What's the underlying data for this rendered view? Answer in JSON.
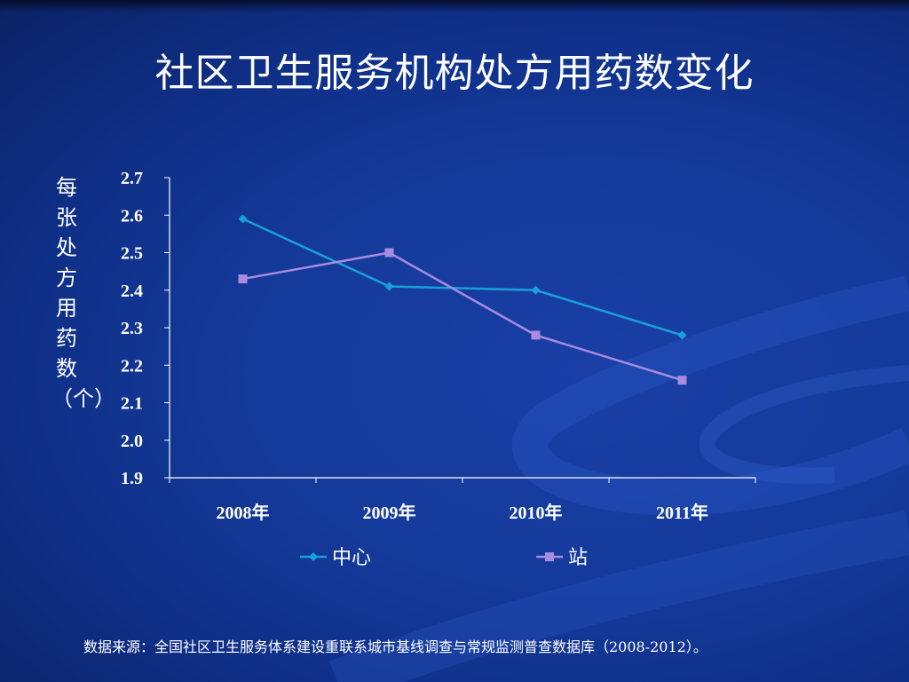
{
  "slide": {
    "title": "社区卫生服务机构处方用药数变化",
    "source": "数据来源：全国社区卫生服务体系建设重联系城市基线调查与常规监测普查数据库（2008-2012）。"
  },
  "colors": {
    "background": "#143a9b",
    "series_center": "#1aa0d8",
    "series_station": "#a98be0",
    "axis": "#ffffff"
  },
  "chart_data": {
    "type": "line",
    "title": "",
    "xlabel": "",
    "ylabel": "每张处方用药数（个）",
    "categories": [
      "2008年",
      "2009年",
      "2010年",
      "2011年"
    ],
    "ylim": [
      1.9,
      2.7
    ],
    "yticks": [
      "1.9",
      "2.0",
      "2.1",
      "2.2",
      "2.3",
      "2.4",
      "2.5",
      "2.6",
      "2.7"
    ],
    "grid": false,
    "legend_position": "bottom",
    "series": [
      {
        "name": "中心",
        "marker": "diamond",
        "color": "#1aa0d8",
        "values": [
          2.59,
          2.41,
          2.4,
          2.28
        ]
      },
      {
        "name": "站",
        "marker": "square",
        "color": "#a98be0",
        "values": [
          2.43,
          2.5,
          2.28,
          2.16
        ]
      }
    ]
  }
}
